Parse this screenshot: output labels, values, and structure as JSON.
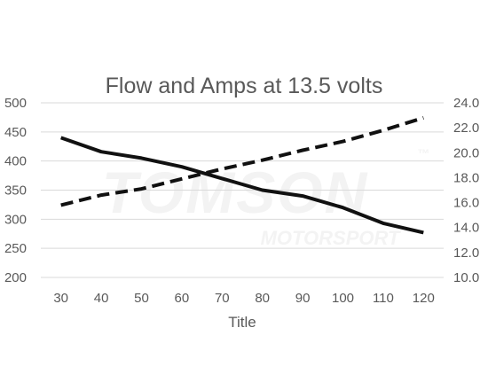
{
  "chart_data": {
    "type": "line",
    "title": "Flow and Amps at 13.5 volts",
    "xlabel": "Title",
    "x": [
      30,
      40,
      50,
      60,
      70,
      80,
      90,
      100,
      110,
      120
    ],
    "x_tick_labels": [
      "30",
      "40",
      "50",
      "60",
      "70",
      "80",
      "90",
      "100",
      "110",
      "120"
    ],
    "ylim": [
      200,
      500
    ],
    "y_tick_labels": [
      "200",
      "250",
      "300",
      "350",
      "400",
      "450",
      "500"
    ],
    "y2lim": [
      10.0,
      24.0
    ],
    "y2_tick_labels": [
      "10.0",
      "12.0",
      "14.0",
      "16.0",
      "18.0",
      "20.0",
      "22.0",
      "24.0"
    ],
    "grid": true,
    "legend": "none",
    "series": [
      {
        "axis": "left",
        "style": "solid",
        "color": "#111111",
        "values": [
          440,
          416,
          405,
          390,
          370,
          350,
          340,
          320,
          293,
          277
        ]
      },
      {
        "axis": "right",
        "style": "dashed",
        "color": "#111111",
        "values": [
          15.8,
          16.6,
          17.1,
          17.9,
          18.7,
          19.4,
          20.2,
          20.9,
          21.8,
          22.8
        ]
      }
    ],
    "watermark": {
      "text_main": "TOMSON",
      "text_sub": "MOTORSPORT",
      "symbol": "™"
    }
  }
}
